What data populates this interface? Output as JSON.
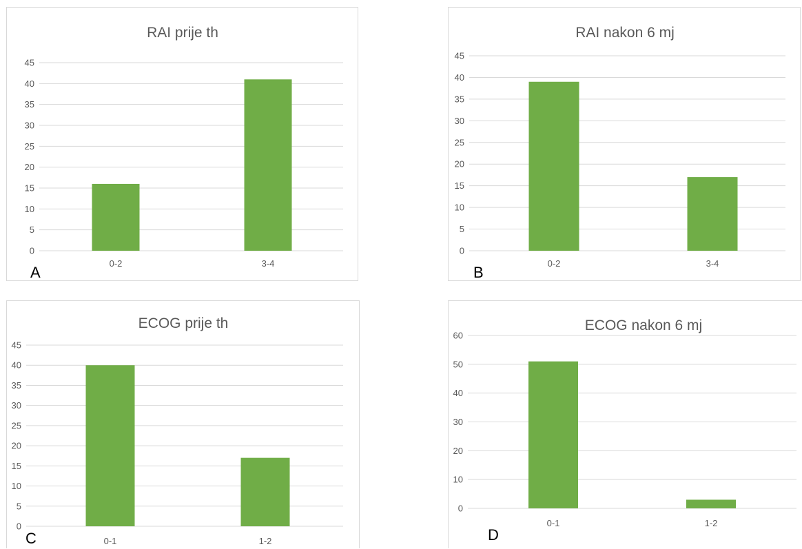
{
  "colors": {
    "bar": "#70ad47",
    "gridline": "#d9d9d9",
    "axis_text": "#595959",
    "panel_border": "#d9d9d9"
  },
  "chart_data": [
    {
      "panel_letter": "A",
      "type": "bar",
      "title": "RAI prije th",
      "categories": [
        "0-2",
        "3-4"
      ],
      "values": [
        16,
        41
      ],
      "ylim": [
        0,
        45
      ],
      "ystep": 5,
      "grid": true,
      "legend": "none"
    },
    {
      "panel_letter": "B",
      "type": "bar",
      "title": "RAI nakon 6 mj",
      "categories": [
        "0-2",
        "3-4"
      ],
      "values": [
        39,
        17
      ],
      "ylim": [
        0,
        45
      ],
      "ystep": 5,
      "grid": true,
      "legend": "none"
    },
    {
      "panel_letter": "C",
      "type": "bar",
      "title": "ECOG prije th",
      "categories": [
        "0-1",
        "1-2"
      ],
      "values": [
        40,
        17
      ],
      "ylim": [
        0,
        45
      ],
      "ystep": 5,
      "grid": true,
      "legend": "none"
    },
    {
      "panel_letter": "D",
      "type": "bar",
      "title": "ECOG nakon 6 mj",
      "categories": [
        "0-1",
        "1-2"
      ],
      "values": [
        51,
        3
      ],
      "ylim": [
        0,
        60
      ],
      "ystep": 10,
      "grid": true,
      "legend": "none"
    }
  ]
}
